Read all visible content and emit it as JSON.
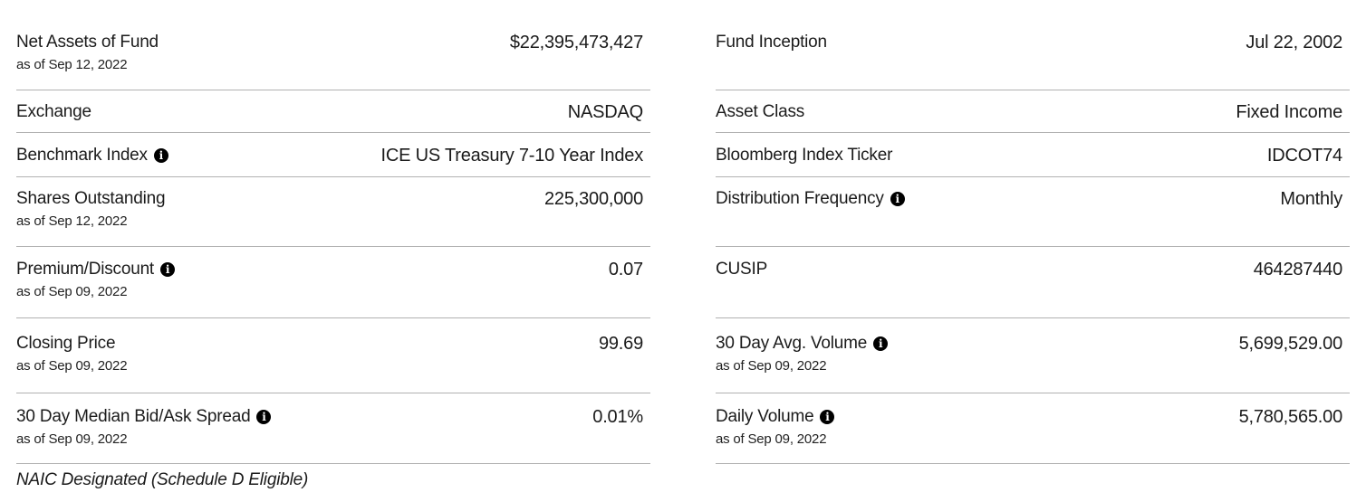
{
  "icons": {
    "info_glyph": "i"
  },
  "colors": {
    "divider": "#b1b1b1",
    "text": "#1b1b1b",
    "info_bg": "#000000",
    "info_fg": "#ffffff"
  },
  "columns": [
    {
      "rows": [
        {
          "label": "Net Assets of Fund",
          "as_of": "as of Sep 12, 2022",
          "value": "$22,395,473,427",
          "info": false
        },
        {
          "label": "Exchange",
          "value": "NASDAQ",
          "info": false
        },
        {
          "label": "Benchmark Index",
          "value": "ICE US Treasury 7-10 Year Index",
          "info": true
        },
        {
          "label": "Shares Outstanding",
          "as_of": "as of Sep 12, 2022",
          "value": "225,300,000",
          "info": false
        },
        {
          "label": "Premium/Discount",
          "as_of": "as of Sep 09, 2022",
          "value": "0.07",
          "info": true
        },
        {
          "label": "Closing Price",
          "as_of": "as of Sep 09, 2022",
          "value": "99.69",
          "info": false
        },
        {
          "label": "30 Day Median Bid/Ask Spread",
          "as_of": "as of Sep 09, 2022",
          "value": "0.01%",
          "info": true
        }
      ],
      "footnote": "NAIC Designated (Schedule D Eligible)"
    },
    {
      "rows": [
        {
          "label": "Fund Inception",
          "value": "Jul 22, 2002",
          "info": false
        },
        {
          "label": "Asset Class",
          "value": "Fixed Income",
          "info": false
        },
        {
          "label": "Bloomberg Index Ticker",
          "value": "IDCOT74",
          "info": false
        },
        {
          "label": "Distribution Frequency",
          "value": "Monthly",
          "info": true
        },
        {
          "label": "CUSIP",
          "value": "464287440",
          "info": false
        },
        {
          "label": "30 Day Avg. Volume",
          "as_of": "as of Sep 09, 2022",
          "value": "5,699,529.00",
          "info": true
        },
        {
          "label": "Daily Volume",
          "as_of": "as of Sep 09, 2022",
          "value": "5,780,565.00",
          "info": true
        }
      ]
    }
  ]
}
